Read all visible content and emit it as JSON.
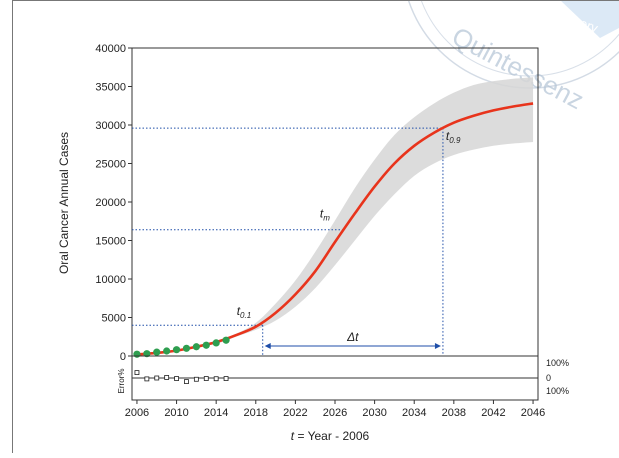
{
  "chart_data": {
    "type": "line",
    "ylabel": "Oral Cancer Annual Cases",
    "xlabel_prefix": "t",
    "xlabel_rest": " = Year - 2006",
    "xlim": [
      2005.5,
      2046.5
    ],
    "ylim": [
      0,
      40000
    ],
    "x_ticks": [
      2006,
      2010,
      2014,
      2018,
      2022,
      2026,
      2030,
      2034,
      2038,
      2042,
      2046
    ],
    "y_ticks": [
      0,
      5000,
      10000,
      15000,
      20000,
      25000,
      30000,
      35000,
      40000
    ],
    "fit_curve": {
      "color": "#e8341c",
      "x": [
        2006,
        2008,
        2010,
        2012,
        2014,
        2016,
        2018,
        2020,
        2022,
        2024,
        2026,
        2028,
        2030,
        2032,
        2034,
        2036,
        2038,
        2040,
        2042,
        2044,
        2046
      ],
      "y": [
        200,
        400,
        700,
        1200,
        1800,
        2700,
        3800,
        5600,
        8000,
        11000,
        14800,
        18500,
        22000,
        25000,
        27300,
        29000,
        30300,
        31200,
        31900,
        32400,
        32800
      ]
    },
    "confidence_band": {
      "color": "#d6d6d6",
      "x": [
        2006,
        2010,
        2014,
        2016,
        2018,
        2020,
        2022,
        2024,
        2026,
        2028,
        2030,
        2032,
        2034,
        2036,
        2038,
        2040,
        2042,
        2044,
        2046
      ],
      "lower": [
        200,
        600,
        1600,
        2500,
        3400,
        4600,
        6400,
        8800,
        11800,
        15000,
        18200,
        21000,
        23400,
        25000,
        26100,
        26800,
        27300,
        27600,
        27800
      ],
      "upper": [
        200,
        800,
        2000,
        2900,
        4300,
        6800,
        9800,
        13500,
        17600,
        21800,
        25500,
        28700,
        31000,
        32800,
        34200,
        35200,
        35700,
        36000,
        36200
      ]
    },
    "observed": {
      "color": "#2e9e4f",
      "x": [
        2006,
        2007,
        2008,
        2009,
        2010,
        2011,
        2012,
        2013,
        2014,
        2015
      ],
      "y": [
        230,
        300,
        500,
        650,
        820,
        1000,
        1200,
        1400,
        1700,
        2050
      ]
    },
    "error_percent": {
      "x": [
        2006,
        2007,
        2008,
        2009,
        2010,
        2011,
        2012,
        2013,
        2014,
        2015
      ],
      "y": [
        30,
        -5,
        0,
        3,
        -3,
        -20,
        -7,
        -3,
        -4,
        -3
      ],
      "tick_labels": [
        "100%",
        "0",
        "100%"
      ]
    },
    "error_axis_label": "Error%",
    "reference_lines": {
      "color": "#1f4ea8",
      "t01": {
        "x": 2018.7,
        "y": 4000
      },
      "tm": {
        "x": 2026.9,
        "y": 16400
      },
      "t09": {
        "x": 2036.9,
        "y": 29600
      }
    },
    "annotations": {
      "t01": {
        "base": "t",
        "sub": "0.1"
      },
      "tm": {
        "base": "t",
        "sub": "m"
      },
      "t09": {
        "base": "t",
        "sub": "0.9"
      },
      "delta": "Δt"
    }
  },
  "watermark": {
    "text": "Quintessenz",
    "tail_text": "eserv",
    "color": "#b8c7d8"
  }
}
